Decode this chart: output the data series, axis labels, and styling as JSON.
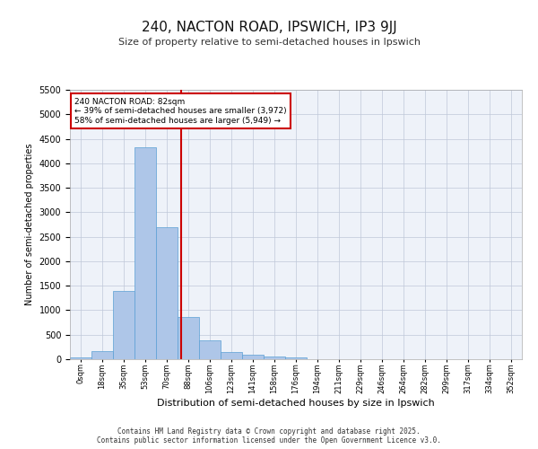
{
  "title1": "240, NACTON ROAD, IPSWICH, IP3 9JJ",
  "title2": "Size of property relative to semi-detached houses in Ipswich",
  "xlabel": "Distribution of semi-detached houses by size in Ipswich",
  "ylabel": "Number of semi-detached properties",
  "bin_labels": [
    "0sqm",
    "18sqm",
    "35sqm",
    "53sqm",
    "70sqm",
    "88sqm",
    "106sqm",
    "123sqm",
    "141sqm",
    "158sqm",
    "176sqm",
    "194sqm",
    "211sqm",
    "229sqm",
    "246sqm",
    "264sqm",
    "282sqm",
    "299sqm",
    "317sqm",
    "334sqm",
    "352sqm"
  ],
  "bar_values": [
    30,
    160,
    1390,
    4330,
    2700,
    870,
    390,
    155,
    95,
    60,
    30,
    5,
    3,
    2,
    1,
    1,
    0,
    0,
    0,
    0,
    0
  ],
  "bar_color": "#aec6e8",
  "bar_edge_color": "#5a9fd4",
  "bg_color": "#eef2f9",
  "grid_color": "#c0c8d8",
  "annotation_text": "240 NACTON ROAD: 82sqm\n← 39% of semi-detached houses are smaller (3,972)\n58% of semi-detached houses are larger (5,949) →",
  "annotation_box_color": "#ffffff",
  "annotation_box_edge": "#cc0000",
  "vline_color": "#cc0000",
  "footer1": "Contains HM Land Registry data © Crown copyright and database right 2025.",
  "footer2": "Contains public sector information licensed under the Open Government Licence v3.0.",
  "ylim": [
    0,
    5500
  ],
  "yticks": [
    0,
    500,
    1000,
    1500,
    2000,
    2500,
    3000,
    3500,
    4000,
    4500,
    5000,
    5500
  ]
}
